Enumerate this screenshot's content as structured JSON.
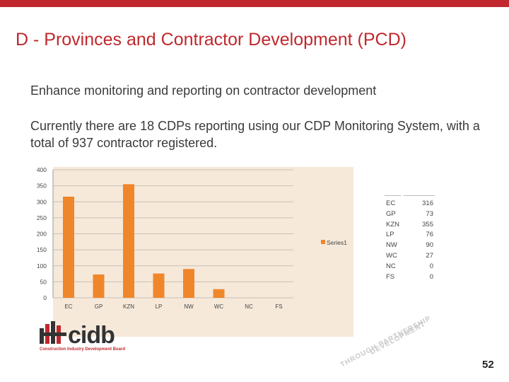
{
  "slide": {
    "title": "D - Provinces and Contractor Development (PCD)",
    "subtitle": "Enhance monitoring and reporting on contractor development",
    "body": "Currently there  are 18 CDPs reporting using our CDP Monitoring System, with a total of 937 contractor registered.",
    "page_number": "52",
    "accent_color": "#c0282d"
  },
  "logo": {
    "text": "cidb",
    "subtitle": "Construction Industry Development Board"
  },
  "watermark": {
    "lines": [
      "DEVELOPMENT",
      "THROUGH PARTNERSHIP"
    ]
  },
  "chart_data": {
    "type": "bar",
    "categories": [
      "EC",
      "GP",
      "KZN",
      "LP",
      "NW",
      "WC",
      "NC",
      "FS"
    ],
    "series": [
      {
        "name": "Series1",
        "values": [
          316,
          73,
          355,
          76,
          90,
          27,
          0,
          0
        ],
        "color": "#f0862a"
      }
    ],
    "ylim": [
      0,
      400
    ],
    "yticks": [
      0,
      50,
      100,
      150,
      200,
      250,
      300,
      350,
      400
    ],
    "legend": "right",
    "background": "#f6e9da"
  },
  "table": {
    "rows": [
      {
        "label": "EC",
        "value": "316"
      },
      {
        "label": "GP",
        "value": "73"
      },
      {
        "label": "KZN",
        "value": "355"
      },
      {
        "label": "LP",
        "value": "76"
      },
      {
        "label": "NW",
        "value": "90"
      },
      {
        "label": "WC",
        "value": "27"
      },
      {
        "label": "NC",
        "value": "0"
      },
      {
        "label": "FS",
        "value": "0"
      }
    ]
  }
}
